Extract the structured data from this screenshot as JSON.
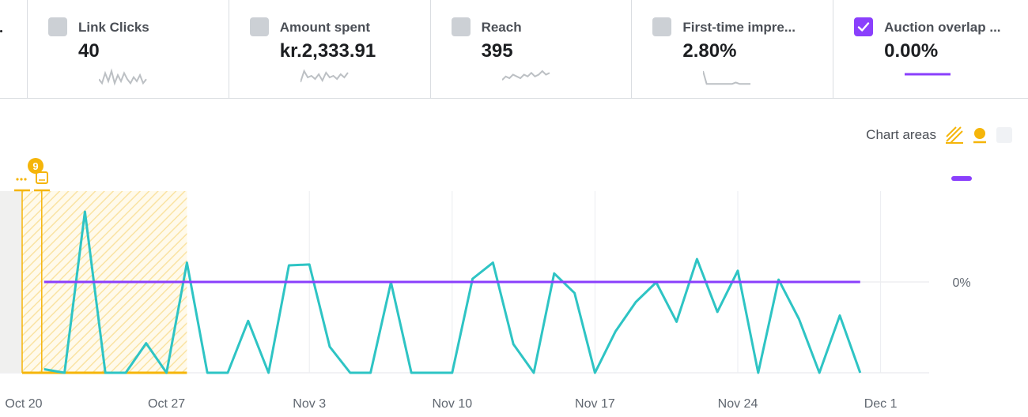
{
  "metrics": [
    {
      "label": "Link Clicks",
      "value": "40",
      "checked": false,
      "spark": [
        3,
        1,
        6,
        2,
        7,
        1,
        5,
        2,
        6,
        3,
        1,
        4,
        2,
        5,
        1,
        3
      ]
    },
    {
      "label": "Amount spent",
      "value": "kr.2,333.91",
      "checked": false,
      "spark": [
        2,
        9,
        5,
        6,
        4,
        7,
        3,
        8,
        5,
        6,
        4,
        7,
        5,
        8
      ]
    },
    {
      "label": "Reach",
      "value": "395",
      "checked": false,
      "spark": [
        3,
        5,
        4,
        6,
        5,
        4,
        6,
        5,
        7,
        5,
        6,
        8,
        6,
        7
      ]
    },
    {
      "label": "First-time impre...",
      "value": "2.80%",
      "checked": false,
      "spark": [
        10,
        1,
        1,
        1,
        1,
        1,
        1,
        1,
        1,
        2,
        1,
        1,
        1,
        1
      ]
    },
    {
      "label": "Auction overlap ...",
      "value": "0.00%",
      "checked": true,
      "spark": [
        0,
        0
      ]
    }
  ],
  "chart_areas": {
    "label": "Chart areas",
    "colors": {
      "accent": "#f5b50a",
      "purple": "#8a3ffc",
      "teal": "#2ec4c4"
    }
  },
  "badge": {
    "count": "9",
    "icons": [
      "ellipsis-icon",
      "tablet-icon"
    ]
  },
  "chart_data": {
    "type": "line",
    "x_ticks": [
      "Oct 20",
      "Oct 27",
      "Nov 3",
      "Nov 10",
      "Nov 17",
      "Nov 24",
      "Dec 1"
    ],
    "x_start": "Oct 20",
    "y_ticks": [
      "0%"
    ],
    "series": [
      {
        "name": "",
        "color": "#2ec4c4",
        "values": [
          0.04,
          0.0,
          1.8,
          0.0,
          0.0,
          0.33,
          0.0,
          1.23,
          0.0,
          0.0,
          0.58,
          0.0,
          1.2,
          1.21,
          0.29,
          0.0,
          0.0,
          1.01,
          0.0,
          0.0,
          0.0,
          1.05,
          1.23,
          0.32,
          0.0,
          1.11,
          0.89,
          0.0,
          0.46,
          0.79,
          1.01,
          0.57,
          1.27,
          0.68,
          1.14,
          0.0,
          1.04,
          0.6,
          0.0,
          0.64,
          0.0
        ]
      },
      {
        "name": "",
        "color": "#8a3ffc",
        "values": [
          1,
          1
        ]
      }
    ],
    "highlight_range": [
      "Oct 21",
      "Oct 30"
    ]
  }
}
